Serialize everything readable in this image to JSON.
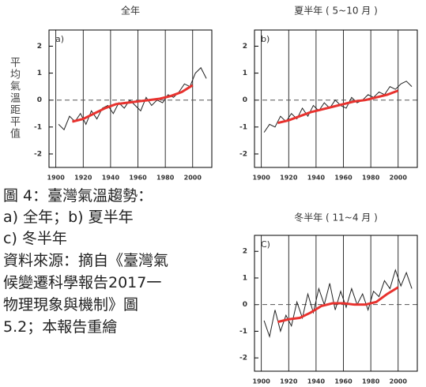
{
  "chart_data": [
    {
      "type": "line",
      "title": "全年",
      "panel_label": "a)",
      "y_label": "平均氣溫距平值",
      "xlim": [
        1895,
        2014
      ],
      "xticks": [
        1900,
        1920,
        1940,
        1960,
        1980,
        2000
      ],
      "ylim": [
        -2.5,
        2.6
      ],
      "yticks": [
        -2,
        -1,
        0,
        1,
        2
      ],
      "grid": true,
      "zero_line": true,
      "series": [
        {
          "color": "#222222",
          "x": [
            1902,
            1906,
            1910,
            1914,
            1918,
            1922,
            1926,
            1930,
            1934,
            1938,
            1942,
            1946,
            1950,
            1954,
            1958,
            1962,
            1966,
            1970,
            1974,
            1978,
            1982,
            1986,
            1990,
            1994,
            1998,
            2002,
            2006,
            2010
          ],
          "values": [
            -0.9,
            -1.1,
            -0.6,
            -0.8,
            -0.5,
            -0.9,
            -0.4,
            -0.7,
            -0.3,
            -0.2,
            -0.5,
            -0.1,
            -0.3,
            0.0,
            -0.2,
            -0.4,
            0.1,
            -0.2,
            0.0,
            -0.1,
            0.2,
            0.1,
            0.3,
            0.6,
            0.5,
            1.0,
            1.2,
            0.8
          ]
        },
        {
          "color": "#e8322e",
          "x": [
            1912,
            1920,
            1928,
            1936,
            1944,
            1952,
            1960,
            1968,
            1976,
            1984,
            1992,
            2000
          ],
          "values": [
            -0.8,
            -0.7,
            -0.5,
            -0.3,
            -0.15,
            -0.1,
            -0.05,
            0.0,
            0.05,
            0.15,
            0.3,
            0.55
          ]
        }
      ]
    },
    {
      "type": "line",
      "title": "夏半年 ( 5~10 月 )",
      "panel_label": "b)",
      "xlim": [
        1895,
        2014
      ],
      "xticks": [
        1900,
        1920,
        1940,
        1960,
        1980,
        2000
      ],
      "ylim": [
        -2.5,
        2.6
      ],
      "yticks": [
        -2,
        -1,
        0,
        1,
        2
      ],
      "grid": true,
      "zero_line": true,
      "series": [
        {
          "color": "#222222",
          "x": [
            1902,
            1906,
            1910,
            1914,
            1918,
            1922,
            1926,
            1930,
            1934,
            1938,
            1942,
            1946,
            1950,
            1954,
            1958,
            1962,
            1966,
            1970,
            1974,
            1978,
            1982,
            1986,
            1990,
            1994,
            1998,
            2002,
            2006,
            2010
          ],
          "values": [
            -1.2,
            -0.9,
            -1.0,
            -0.6,
            -0.8,
            -0.5,
            -0.7,
            -0.3,
            -0.6,
            -0.2,
            -0.4,
            -0.1,
            -0.3,
            0.0,
            -0.2,
            -0.3,
            0.1,
            -0.1,
            0.0,
            0.2,
            0.1,
            0.3,
            0.2,
            0.5,
            0.4,
            0.6,
            0.7,
            0.5
          ]
        },
        {
          "color": "#e8322e",
          "x": [
            1912,
            1920,
            1928,
            1936,
            1944,
            1952,
            1960,
            1968,
            1976,
            1984,
            1992,
            2000
          ],
          "values": [
            -0.85,
            -0.75,
            -0.6,
            -0.45,
            -0.35,
            -0.25,
            -0.15,
            -0.05,
            0.0,
            0.1,
            0.2,
            0.35
          ]
        }
      ]
    },
    {
      "type": "line",
      "title": "冬半年 ( 11~4 月 )",
      "panel_label": "C)",
      "xlim": [
        1895,
        2014
      ],
      "xticks": [
        1900,
        1920,
        1940,
        1960,
        1980,
        2000
      ],
      "ylim": [
        -2.5,
        2.6
      ],
      "yticks": [
        -2,
        -1,
        0,
        1,
        2
      ],
      "grid": true,
      "zero_line": true,
      "series": [
        {
          "color": "#222222",
          "x": [
            1902,
            1906,
            1910,
            1914,
            1918,
            1922,
            1926,
            1930,
            1934,
            1938,
            1942,
            1946,
            1950,
            1954,
            1958,
            1962,
            1966,
            1970,
            1974,
            1978,
            1982,
            1986,
            1990,
            1994,
            1998,
            2002,
            2006,
            2010
          ],
          "values": [
            -0.6,
            -1.2,
            -0.2,
            -1.0,
            -0.4,
            -0.8,
            0.1,
            -0.5,
            0.4,
            -0.3,
            0.6,
            0.0,
            0.8,
            -0.2,
            0.5,
            -0.1,
            0.6,
            0.0,
            0.4,
            -0.2,
            0.5,
            0.3,
            0.9,
            0.6,
            1.3,
            0.7,
            1.2,
            0.6
          ]
        },
        {
          "color": "#e8322e",
          "x": [
            1912,
            1920,
            1928,
            1936,
            1944,
            1952,
            1960,
            1968,
            1976,
            1984,
            1992,
            2000
          ],
          "values": [
            -0.65,
            -0.55,
            -0.5,
            -0.3,
            -0.05,
            0.05,
            0.05,
            0.0,
            0.0,
            0.1,
            0.4,
            0.65
          ]
        }
      ]
    }
  ],
  "caption": {
    "lines": [
      "圖 4：臺灣氣溫趨勢：",
      "a) 全年；b) 夏半年",
      "c) 冬半年"
    ],
    "source": [
      "資料來源：摘自《臺灣氣",
      "候變遷科學報告2017一",
      "物理現象與機制》圖",
      "5.2；本報告重繪"
    ]
  }
}
